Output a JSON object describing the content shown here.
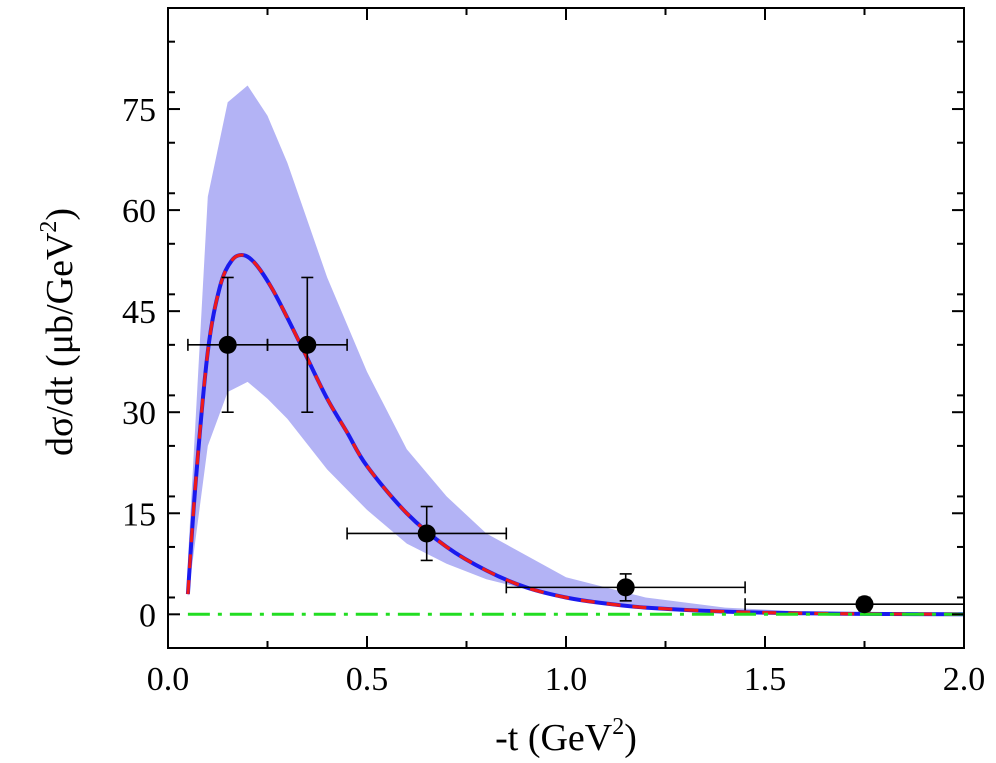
{
  "chart_data": {
    "type": "line",
    "title": "",
    "xlabel_parts": [
      "-t (GeV",
      "2",
      ")"
    ],
    "ylabel_parts": [
      "dσ/dt (μb/GeV",
      "2",
      ")"
    ],
    "xlim": [
      0.0,
      2.0
    ],
    "ylim": [
      -5,
      90
    ],
    "xticks": [
      0.0,
      0.5,
      1.0,
      1.5,
      2.0
    ],
    "xtick_labels": [
      "0.0",
      "0.5",
      "1.0",
      "1.5",
      "2.0"
    ],
    "yticks": [
      0,
      15,
      30,
      45,
      60,
      75
    ],
    "ytick_labels": [
      "0",
      "15",
      "30",
      "45",
      "60",
      "75"
    ],
    "grid": false,
    "legend": "none",
    "band": {
      "color": "#b3b3f5",
      "x": [
        0.05,
        0.1,
        0.15,
        0.2,
        0.25,
        0.3,
        0.4,
        0.5,
        0.6,
        0.7,
        0.8,
        1.0,
        1.2,
        1.4,
        1.6,
        1.8,
        2.0
      ],
      "upper": [
        8,
        62,
        76,
        78.5,
        74,
        67,
        50,
        36,
        24.5,
        17.5,
        12,
        5.5,
        2.5,
        1.0,
        0.4,
        0.15,
        0.05
      ],
      "lower": [
        2.5,
        25,
        33,
        34.5,
        32,
        29,
        21.5,
        15.5,
        10.5,
        7.5,
        5.2,
        2.3,
        1.0,
        0.4,
        0.15,
        0.05,
        0.0
      ]
    },
    "series": [
      {
        "style": "blue-red-dashed",
        "color": "#1a1aee",
        "dash_color": "#ee1a1a",
        "x": [
          0.05,
          0.07,
          0.1,
          0.13,
          0.16,
          0.19,
          0.22,
          0.26,
          0.3,
          0.35,
          0.4,
          0.45,
          0.5,
          0.6,
          0.7,
          0.8,
          0.9,
          1.0,
          1.1,
          1.2,
          1.4,
          1.6,
          1.8,
          2.0
        ],
        "y": [
          3.0,
          20,
          39,
          48.5,
          52.5,
          53.3,
          52,
          48.5,
          44,
          38,
          32,
          27,
          22,
          15,
          10,
          6.5,
          4.0,
          2.5,
          1.6,
          1.0,
          0.4,
          0.15,
          0.05,
          0.02
        ]
      },
      {
        "style": "dash-dot",
        "color": "#22dd22",
        "x": [
          0.05,
          2.0
        ],
        "y": [
          0.0,
          0.0
        ]
      }
    ],
    "points": [
      {
        "x": 0.15,
        "y": 40.0,
        "xerr": 0.1,
        "yerr": 10.0
      },
      {
        "x": 0.35,
        "y": 40.0,
        "xerr": 0.1,
        "yerr": 10.0
      },
      {
        "x": 0.65,
        "y": 12.0,
        "xerr": 0.2,
        "yerr": 4.0
      },
      {
        "x": 1.15,
        "y": 4.0,
        "xerr": 0.3,
        "yerr": 2.0
      },
      {
        "x": 1.75,
        "y": 1.5,
        "xerr": 0.3,
        "yerr": 1.0
      }
    ]
  }
}
